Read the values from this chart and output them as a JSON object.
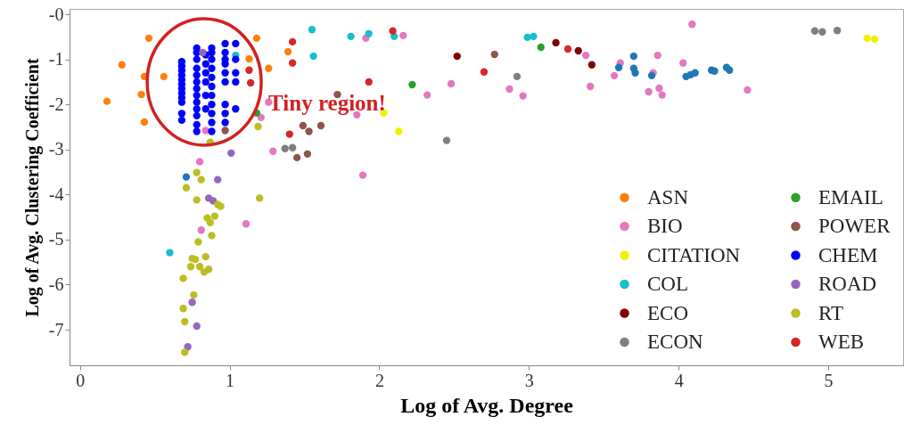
{
  "chart_data": {
    "type": "scatter",
    "xlabel": "Log of Avg. Degree",
    "ylabel": "Log of Avg. Clustering Coefficient",
    "xlim": [
      -0.07,
      5.5
    ],
    "ylim": [
      -7.79,
      0.12
    ],
    "xticks": [
      0,
      1,
      2,
      3,
      4,
      5
    ],
    "yticks": [
      {
        "value": 0,
        "label": "-0"
      },
      -1,
      -2,
      -3,
      -4,
      -5,
      -6,
      -7
    ],
    "grid": false,
    "legend": "bottom right",
    "marker": "circle",
    "annotations": [
      {
        "text": "Tiny region!",
        "x": 0.83,
        "y": -1.5
      }
    ],
    "series": [
      {
        "name": "ASN",
        "color": "#ff7f0e",
        "x": [
          0.46,
          0.28,
          0.18,
          0.43,
          0.41,
          0.56,
          0.43,
          0.84,
          1.18,
          1.13,
          1.26,
          1.39
        ],
        "values": [
          -0.53,
          -1.12,
          -1.93,
          -1.38,
          -1.78,
          -1.38,
          -2.39,
          null,
          -0.53,
          -0.99,
          -1.2,
          -0.83
        ]
      },
      {
        "name": "BIO",
        "color": "#e377c2",
        "x": [
          1.26,
          1.21,
          0.84,
          1.29,
          0.8,
          1.91,
          2.16,
          2.32,
          2.48,
          2.87,
          2.96,
          1.85,
          1.89,
          4.09,
          3.38,
          3.61,
          3.57,
          3.41,
          3.86,
          4.03,
          3.8,
          3.87,
          3.89,
          4.46,
          3.83,
          1.11,
          0.81
        ],
        "values": [
          -1.95,
          -2.29,
          -2.58,
          -3.04,
          -3.27,
          -0.53,
          -0.47,
          -1.79,
          -1.54,
          -1.66,
          -1.81,
          -2.23,
          -3.57,
          -0.22,
          -0.91,
          -1.08,
          -1.36,
          -1.6,
          -0.91,
          -1.08,
          -1.72,
          -1.64,
          -1.79,
          -1.68,
          -1.3,
          -4.65,
          -4.79
        ]
      },
      {
        "name": "CITATION",
        "color": "#f2f200",
        "x": [
          2.03,
          2.13,
          5.26,
          5.31
        ],
        "values": [
          -2.19,
          -2.6,
          -0.53,
          -0.55
        ]
      },
      {
        "name": "COL",
        "color": "#17becf",
        "x": [
          1.04,
          1.55,
          1.56,
          1.81,
          1.93,
          2.1,
          2.99,
          3.03,
          0.6
        ],
        "values": [
          -0.91,
          -0.34,
          -0.93,
          -0.49,
          -0.43,
          -0.49,
          -0.51,
          -0.49,
          -5.29
        ]
      },
      {
        "name": "ECO",
        "color": "#800000",
        "x": [
          2.52,
          3.18,
          3.33,
          3.42
        ],
        "values": [
          -0.93,
          -0.63,
          -0.81,
          -1.12
        ]
      },
      {
        "name": "ECON",
        "color": "#7f7f7f",
        "x": [
          1.37,
          1.42,
          2.45,
          2.92,
          4.91,
          4.96,
          5.06
        ],
        "values": [
          -2.98,
          -2.96,
          -2.8,
          -1.38,
          -0.37,
          -0.39,
          -0.36
        ]
      },
      {
        "name": "EMAIL",
        "color": "#2ca02c",
        "x": [
          2.22,
          3.08,
          1.18
        ],
        "values": [
          -1.56,
          -0.73,
          -2.19
        ]
      },
      {
        "name": "POWER",
        "color": "#8c564b",
        "x": [
          1.72,
          1.49,
          1.53,
          1.61,
          1.45,
          1.52,
          2.77,
          0.97
        ],
        "values": [
          -1.78,
          -2.47,
          -2.6,
          -2.47,
          -3.18,
          -3.1,
          -0.89,
          -2.58
        ]
      },
      {
        "name": "CHEM",
        "color": "#0000ff",
        "x": [
          0.68,
          0.68,
          0.68,
          0.68,
          0.68,
          0.68,
          0.68,
          0.68,
          0.68,
          0.68,
          0.68,
          0.68,
          0.78,
          0.78,
          0.78,
          0.78,
          0.78,
          0.78,
          0.78,
          0.78,
          0.78,
          0.78,
          0.78,
          0.78,
          0.78,
          0.84,
          0.84,
          0.84,
          0.84,
          0.84,
          0.84,
          0.88,
          0.88,
          0.88,
          0.88,
          0.88,
          0.88,
          0.88,
          0.88,
          0.88,
          0.88,
          0.88,
          0.97,
          0.97,
          0.97,
          0.97,
          0.97,
          0.97,
          0.97,
          0.97,
          0.97,
          1.04,
          1.04,
          1.04,
          1.04,
          1.04
        ],
        "values": [
          -1.05,
          -1.15,
          -1.25,
          -1.35,
          -1.45,
          -1.55,
          -1.65,
          -1.75,
          -1.85,
          -1.95,
          -2.2,
          -2.35,
          -0.75,
          -0.85,
          -1.0,
          -1.2,
          -1.35,
          -1.5,
          -1.65,
          -1.8,
          -1.95,
          -2.1,
          -2.25,
          -2.45,
          -2.6,
          -0.9,
          -1.1,
          -1.3,
          -1.5,
          -1.8,
          -2.1,
          -0.75,
          -0.85,
          -1.0,
          -1.2,
          -1.4,
          -1.6,
          -1.8,
          -2.0,
          -2.2,
          -2.4,
          -2.6,
          -0.65,
          -0.85,
          -1.0,
          -1.1,
          -1.3,
          -1.5,
          -2.0,
          -2.2,
          -2.4,
          -0.65,
          -1.0,
          -1.3,
          -1.5,
          -2.1
        ]
      },
      {
        "name": "ROAD",
        "color": "#9467bd",
        "x": [
          0.82,
          1.01,
          0.92,
          0.86,
          0.89,
          0.75,
          0.78,
          0.72
        ],
        "values": [
          -0.85,
          -3.08,
          -3.67,
          -4.08,
          -4.14,
          -6.39,
          -6.92,
          -7.38
        ]
      },
      {
        "name": "RT",
        "color": "#bcbd22",
        "x": [
          1.19,
          0.87,
          0.78,
          0.81,
          0.71,
          0.78,
          0.92,
          0.94,
          1.2,
          0.88,
          0.85,
          0.9,
          0.87,
          0.88,
          0.79,
          0.75,
          0.77,
          0.84,
          0.74,
          0.8,
          0.83,
          0.86,
          0.69,
          0.76,
          0.69,
          0.7,
          0.7
        ],
        "values": [
          -2.49,
          -2.84,
          -3.51,
          -3.67,
          -3.85,
          -4.12,
          -4.22,
          -4.26,
          -4.08,
          null,
          -4.52,
          -4.48,
          -4.62,
          -4.91,
          -5.05,
          -5.42,
          -5.44,
          -5.38,
          -5.6,
          -5.6,
          -5.72,
          -5.66,
          -5.86,
          -6.23,
          -6.53,
          -6.82,
          -7.5
        ]
      },
      {
        "color": "#1f77b4",
        "x": [
          0.71,
          3.7,
          3.6,
          3.7,
          3.71,
          3.82,
          4.05,
          4.08,
          4.11,
          4.22,
          4.24,
          4.32,
          4.34
        ],
        "values": [
          -3.61,
          -0.93,
          -1.18,
          -1.2,
          -1.3,
          -1.36,
          -1.38,
          -1.34,
          -1.3,
          -1.24,
          -1.26,
          -1.18,
          -1.24
        ]
      },
      {
        "name": "WEB",
        "color": "#d62728",
        "x": [
          1.13,
          1.14,
          1.42,
          1.42,
          2.09,
          1.93,
          1.4,
          2.7,
          3.26
        ],
        "values": [
          -1.24,
          -1.52,
          -0.61,
          -1.08,
          -0.37,
          -1.5,
          -2.66,
          -1.28,
          -0.77
        ]
      }
    ]
  }
}
